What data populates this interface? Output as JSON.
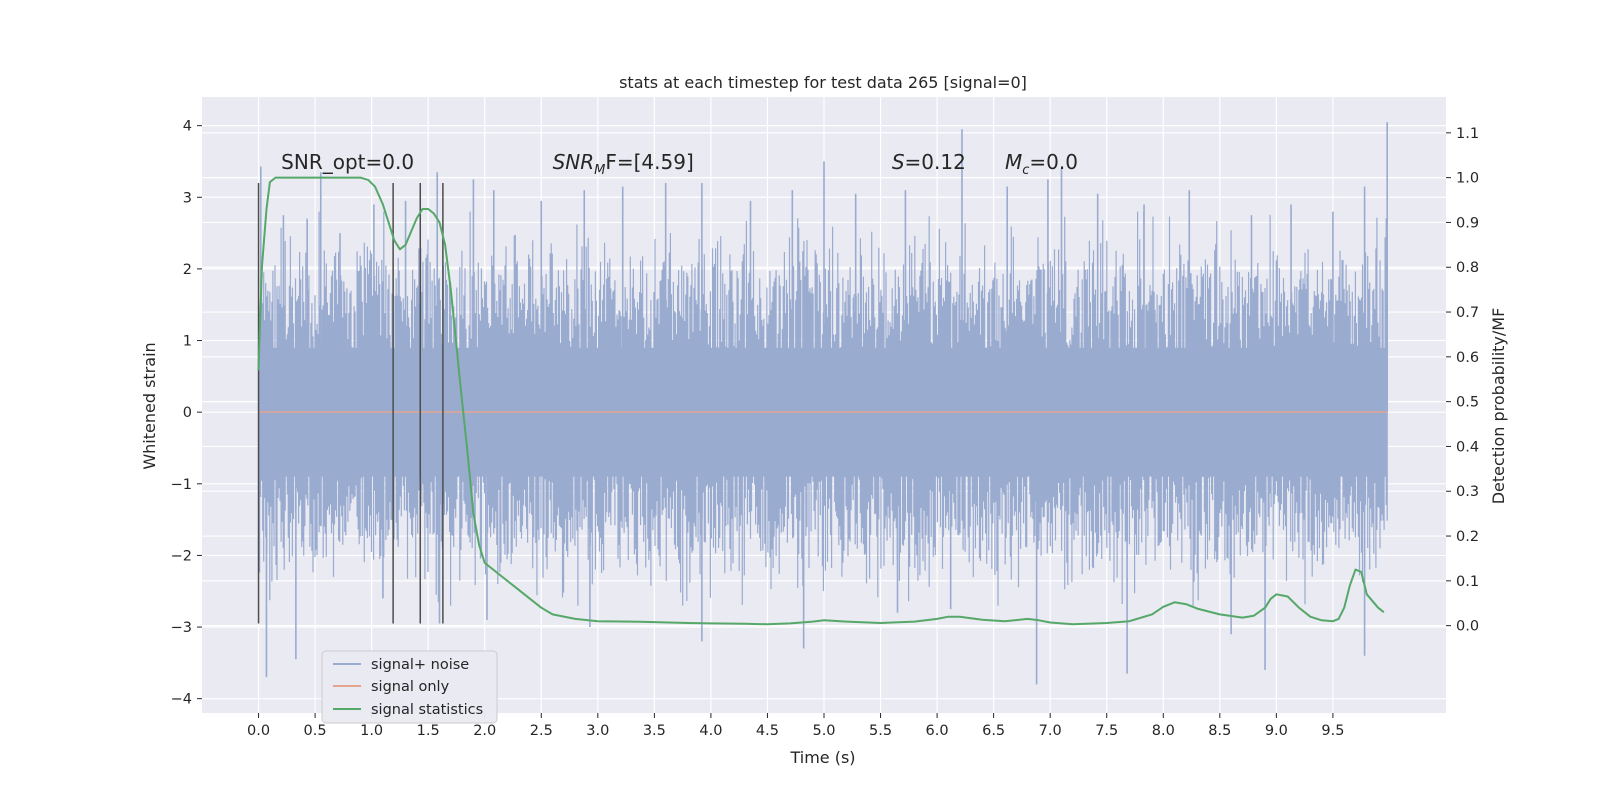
{
  "chart_data": {
    "type": "line",
    "title": "stats at each timestep for test data 265 [signal=0]",
    "xlabel": "Time (s)",
    "ylabel": "Whitened strain",
    "y2label": "Detection probability/MF",
    "xlim": [
      -0.5,
      10.5
    ],
    "ylim": [
      -4.2,
      4.4
    ],
    "y2lim": [
      -0.195,
      1.18
    ],
    "grid": true,
    "legend_position": "lower-left",
    "x_ticks": [
      0.0,
      0.5,
      1.0,
      1.5,
      2.0,
      2.5,
      3.0,
      3.5,
      4.0,
      4.5,
      5.0,
      5.5,
      6.0,
      6.5,
      7.0,
      7.5,
      8.0,
      8.5,
      9.0,
      9.5
    ],
    "x_tick_labels": [
      "0.0",
      "0.5",
      "1.0",
      "1.5",
      "2.0",
      "2.5",
      "3.0",
      "3.5",
      "4.0",
      "4.5",
      "5.0",
      "5.5",
      "6.0",
      "6.5",
      "7.0",
      "7.5",
      "8.0",
      "8.5",
      "9.0",
      "9.5"
    ],
    "y_ticks": [
      4,
      3,
      2,
      1,
      0,
      -1,
      -2,
      -3,
      -4
    ],
    "y_tick_labels": [
      "4",
      "3",
      "2",
      "1",
      "0",
      "−1",
      "−2",
      "−3",
      "−4"
    ],
    "y2_ticks": [
      1.1,
      1.0,
      0.9,
      0.8,
      0.7,
      0.6,
      0.5,
      0.4,
      0.3,
      0.2,
      0.1,
      0.0
    ],
    "y2_tick_labels": [
      "1.1",
      "1.0",
      "0.9",
      "0.8",
      "0.7",
      "0.6",
      "0.5",
      "0.4",
      "0.3",
      "0.2",
      "0.1",
      "0.0"
    ],
    "annotations": [
      {
        "text": "SNR_opt=0.0",
        "x": 0.2,
        "y": 3.3
      },
      {
        "text": "SNR_MF=[4.59]",
        "x": 2.6,
        "y": 3.3,
        "rich": [
          "SNR",
          "M",
          "F=[4.59]"
        ]
      },
      {
        "text": "S=0.12",
        "x": 5.6,
        "y": 3.3,
        "rich": [
          "S",
          "",
          "=0.12"
        ]
      },
      {
        "text": "M_c=0.0",
        "x": 6.6,
        "y": 3.3,
        "rich": [
          "M",
          "c",
          "=0.0"
        ]
      }
    ],
    "vertical_markers": {
      "x": [
        0.0,
        1.19,
        1.43,
        1.63
      ],
      "y_range": [
        -2.95,
        3.2
      ],
      "color": "#4d4d4d"
    },
    "series": [
      {
        "name": "signal+ noise",
        "color": "#9aabd0",
        "axis": "left",
        "description_noise": true,
        "x_range": [
          0.0,
          9.98
        ],
        "spikes_up": [
          [
            0.02,
            3.43
          ],
          [
            0.22,
            2.75
          ],
          [
            0.43,
            2.7
          ],
          [
            0.55,
            3.35
          ],
          [
            0.72,
            2.5
          ],
          [
            1.02,
            2.9
          ],
          [
            1.3,
            2.95
          ],
          [
            1.58,
            3.35
          ],
          [
            1.9,
            3.25
          ],
          [
            2.08,
            3.1
          ],
          [
            2.5,
            2.95
          ],
          [
            2.88,
            3.1
          ],
          [
            3.22,
            3.15
          ],
          [
            3.6,
            3.2
          ],
          [
            3.92,
            3.2
          ],
          [
            4.35,
            2.95
          ],
          [
            4.72,
            3.1
          ],
          [
            5.0,
            3.5
          ],
          [
            5.28,
            3.05
          ],
          [
            5.72,
            3.1
          ],
          [
            6.22,
            3.95
          ],
          [
            6.62,
            3.15
          ],
          [
            6.98,
            3.25
          ],
          [
            7.1,
            3.4
          ],
          [
            7.42,
            3.05
          ],
          [
            7.83,
            2.9
          ],
          [
            8.23,
            3.1
          ],
          [
            8.78,
            2.75
          ],
          [
            9.13,
            2.9
          ],
          [
            9.5,
            2.8
          ],
          [
            9.78,
            3.15
          ],
          [
            9.98,
            4.05
          ]
        ],
        "spikes_down": [
          [
            0.07,
            -3.7
          ],
          [
            0.33,
            -3.45
          ],
          [
            1.1,
            -2.6
          ],
          [
            1.6,
            -2.95
          ],
          [
            2.02,
            -2.9
          ],
          [
            2.93,
            -3.0
          ],
          [
            3.92,
            -3.2
          ],
          [
            4.82,
            -3.3
          ],
          [
            5.65,
            -2.8
          ],
          [
            6.12,
            -2.75
          ],
          [
            6.88,
            -3.8
          ],
          [
            7.68,
            -3.65
          ],
          [
            8.6,
            -3.1
          ],
          [
            8.9,
            -3.6
          ],
          [
            9.78,
            -3.4
          ]
        ]
      },
      {
        "name": "signal only",
        "color": "#e4a58f",
        "axis": "left",
        "x": [
          0.0,
          9.98
        ],
        "y": [
          0.0,
          0.0
        ]
      },
      {
        "name": "signal statistics",
        "color": "#55a868",
        "axis": "right",
        "x": [
          0.0,
          0.03,
          0.07,
          0.1,
          0.15,
          0.25,
          0.4,
          0.6,
          0.8,
          0.9,
          0.97,
          1.03,
          1.1,
          1.15,
          1.2,
          1.25,
          1.3,
          1.35,
          1.4,
          1.45,
          1.5,
          1.55,
          1.6,
          1.65,
          1.7,
          1.78,
          1.85,
          1.9,
          1.95,
          2.0,
          2.05,
          2.1,
          2.15,
          2.2,
          2.3,
          2.4,
          2.5,
          2.6,
          2.8,
          3.0,
          3.3,
          3.5,
          3.8,
          4.0,
          4.3,
          4.5,
          4.7,
          4.9,
          5.0,
          5.2,
          5.5,
          5.8,
          6.0,
          6.1,
          6.2,
          6.4,
          6.6,
          6.8,
          6.9,
          7.0,
          7.2,
          7.5,
          7.7,
          7.9,
          8.0,
          8.1,
          8.2,
          8.3,
          8.5,
          8.7,
          8.8,
          8.9,
          8.95,
          9.0,
          9.1,
          9.2,
          9.3,
          9.4,
          9.5,
          9.55,
          9.6,
          9.65,
          9.7,
          9.75,
          9.8,
          9.9,
          9.95
        ],
        "y": [
          0.57,
          0.8,
          0.93,
          0.99,
          1.0,
          1.0,
          1.0,
          1.0,
          1.0,
          1.0,
          0.995,
          0.98,
          0.94,
          0.9,
          0.86,
          0.84,
          0.85,
          0.88,
          0.91,
          0.93,
          0.93,
          0.92,
          0.9,
          0.85,
          0.75,
          0.55,
          0.38,
          0.25,
          0.18,
          0.14,
          0.13,
          0.12,
          0.11,
          0.1,
          0.08,
          0.06,
          0.04,
          0.025,
          0.015,
          0.01,
          0.009,
          0.008,
          0.006,
          0.005,
          0.004,
          0.003,
          0.005,
          0.009,
          0.012,
          0.009,
          0.006,
          0.009,
          0.015,
          0.02,
          0.02,
          0.013,
          0.01,
          0.015,
          0.012,
          0.007,
          0.003,
          0.006,
          0.01,
          0.025,
          0.042,
          0.052,
          0.048,
          0.038,
          0.025,
          0.018,
          0.022,
          0.04,
          0.06,
          0.07,
          0.065,
          0.04,
          0.02,
          0.012,
          0.01,
          0.015,
          0.04,
          0.09,
          0.125,
          0.12,
          0.07,
          0.04,
          0.03
        ]
      }
    ]
  }
}
